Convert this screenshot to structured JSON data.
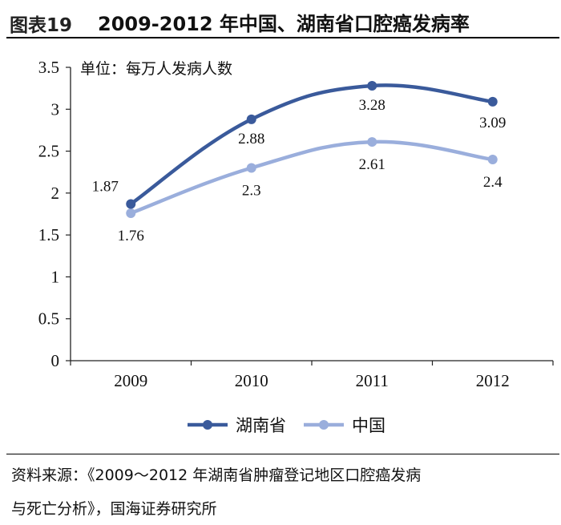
{
  "header": {
    "figure_label": "图表19",
    "title": "2009-2012 年中国、湖南省口腔癌发病率"
  },
  "chart_data": {
    "type": "line",
    "categories": [
      "2009",
      "2010",
      "2011",
      "2012"
    ],
    "series": [
      {
        "name": "湖南省",
        "values": [
          1.87,
          2.88,
          3.28,
          3.09
        ],
        "color": "#3A5A9B",
        "labels": [
          "1.87",
          "2.88",
          "3.28",
          "3.09"
        ]
      },
      {
        "name": "中国",
        "values": [
          1.76,
          2.3,
          2.61,
          2.4
        ],
        "color": "#9AAEDC",
        "labels": [
          "1.76",
          "2.3",
          "2.61",
          "2.4"
        ]
      }
    ],
    "unit_label": "单位：每万人发病人数",
    "yticks": [
      "0",
      "0.5",
      "1",
      "1.5",
      "2",
      "2.5",
      "3",
      "3.5"
    ],
    "ylim": [
      0,
      3.5
    ],
    "smooth": true,
    "legend": "bottom-center",
    "grid": false
  },
  "source": {
    "line1": "资料来源：《2009～2012 年湖南省肿瘤登记地区口腔癌发病",
    "line2": "与死亡分析》，国海证券研究所"
  }
}
